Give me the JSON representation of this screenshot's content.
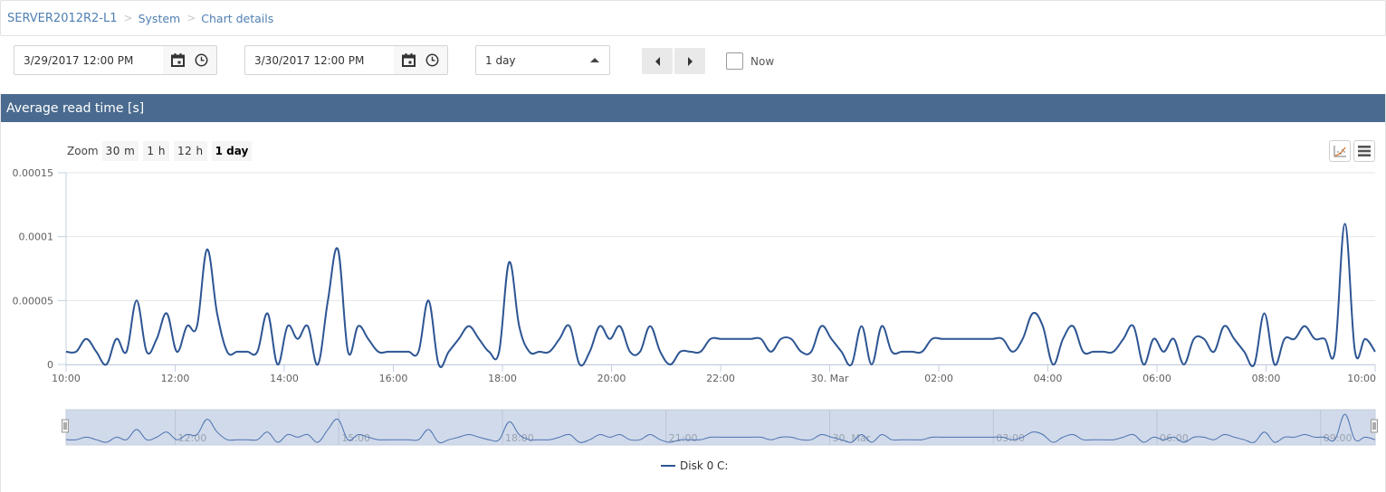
{
  "breadcrumb": {
    "items": [
      "SERVER2012R2-L1",
      "System",
      "Chart details"
    ],
    "separator_icon": "chevron-right-icon"
  },
  "controls": {
    "from_date": "3/29/2017 12:00 PM",
    "to_date": "3/30/2017 12:00 PM",
    "range_select": "1 day",
    "prev_icon": "caret-left-icon",
    "next_icon": "caret-right-icon",
    "now_label": "Now",
    "now_checked": false
  },
  "panel": {
    "title": "Average read time [s]",
    "zoom_label": "Zoom",
    "zoom_options": [
      "30 m",
      "1 h",
      "12 h",
      "1 day"
    ],
    "zoom_active": "1 day",
    "tools": [
      "trendline-icon",
      "menu-icon"
    ]
  },
  "colors": {
    "header_bg": "#4a6b8f",
    "series": "#2d5593",
    "navigator_bg": "#d1daea",
    "link": "#4f7fb1"
  },
  "chart_data": {
    "type": "line",
    "title": "Average read time [s]",
    "xlabel": "",
    "ylabel": "",
    "ylim": [
      0,
      0.00015
    ],
    "yticks": [
      "0",
      "0.00005",
      "0.0001",
      "0.00015"
    ],
    "xticks": [
      "10:00",
      "12:00",
      "14:00",
      "16:00",
      "18:00",
      "20:00",
      "22:00",
      "30. Mar",
      "02:00",
      "04:00",
      "06:00",
      "08:00",
      "10:00"
    ],
    "navigator_ticks": [
      "12:00",
      "15:00",
      "18:00",
      "21:00",
      "30. Mar",
      "03:00",
      "06:00",
      "09:00"
    ],
    "grid": true,
    "legend_position": "bottom",
    "interval_minutes": 12,
    "x_start": "2017-03-29 10:00",
    "series": [
      {
        "name": "Disk 0 C:",
        "unit_scale": 1e-05,
        "values": [
          1,
          1,
          2,
          1,
          0,
          2,
          1,
          5,
          1,
          2,
          4,
          1,
          3,
          3,
          9,
          4,
          1,
          1,
          1,
          1,
          4,
          0,
          3,
          2,
          3,
          0,
          5,
          9,
          1,
          3,
          2,
          1,
          1,
          1,
          1,
          1,
          5,
          0,
          1,
          2,
          3,
          2,
          1,
          1,
          8,
          3,
          1,
          1,
          1,
          2,
          3,
          0,
          1,
          3,
          2,
          3,
          1,
          1,
          3,
          1,
          0,
          1,
          1,
          1,
          2,
          2,
          2,
          2,
          2,
          2,
          1,
          2,
          2,
          1,
          1,
          3,
          2,
          1,
          0,
          3,
          0,
          3,
          1,
          1,
          1,
          1,
          2,
          2,
          2,
          2,
          2,
          2,
          2,
          2,
          1,
          2,
          4,
          3,
          0,
          2,
          3,
          1,
          1,
          1,
          1,
          2,
          3,
          0,
          2,
          1,
          2,
          0,
          2,
          2,
          1,
          3,
          2,
          1,
          0,
          4,
          0,
          2,
          2,
          3,
          2,
          2,
          1,
          11,
          1,
          2,
          1
        ]
      }
    ]
  },
  "legend": {
    "items": [
      {
        "label": "Disk 0 C:",
        "color": "#2d5593"
      }
    ]
  }
}
